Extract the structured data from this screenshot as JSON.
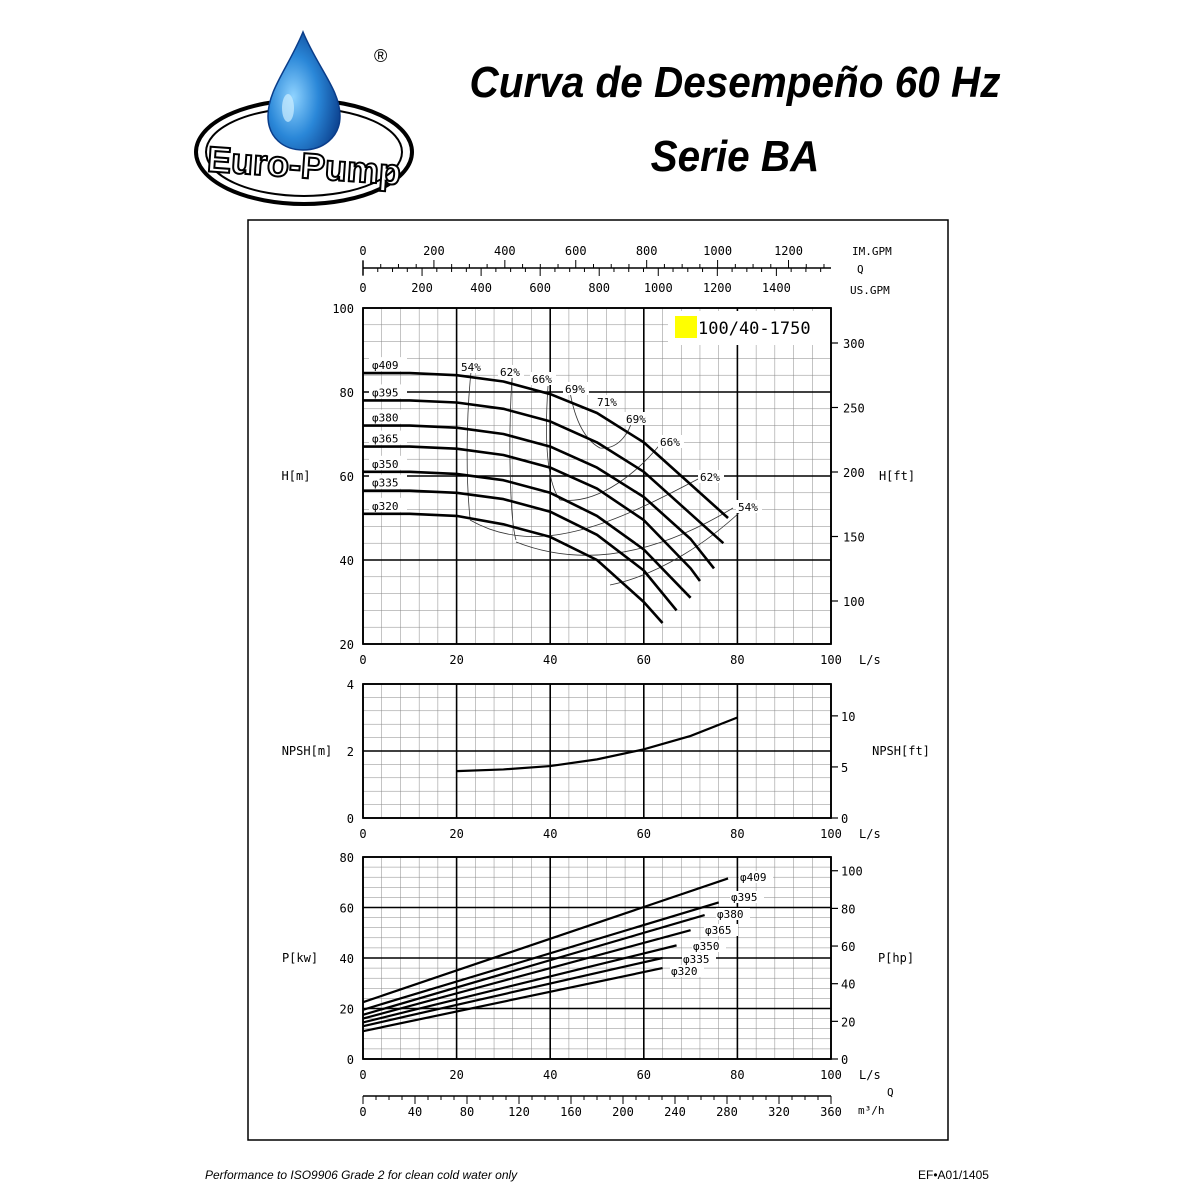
{
  "header": {
    "brand": "Euro-Pump",
    "registered": "®",
    "title_line1": "Curva de Desempeño 60 Hz",
    "title_line2": "Serie BA"
  },
  "footer": {
    "note": "Performance to ISO9906 Grade 2 for clean cold water only",
    "code": "EF•A01/1405"
  },
  "colors": {
    "model_tag": "#ffff00",
    "ink": "#000000",
    "logo_blue": "#1d6fc4"
  },
  "chart_data": [
    {
      "id": "head",
      "type": "line",
      "model": "100/40-1750",
      "xlabel": "L/s",
      "ylabel": "H[m]",
      "ylabel_right": "H[ft]",
      "xlim": [
        0,
        100
      ],
      "ylim": [
        20,
        100
      ],
      "x_ticks": [
        0,
        20,
        40,
        60,
        80,
        100
      ],
      "y_ticks": [
        20,
        40,
        60,
        80,
        100
      ],
      "y_right_ticks": [
        100,
        150,
        200,
        250,
        300
      ],
      "grid": true,
      "top_axes": {
        "label": "Q",
        "im_gpm": {
          "label": "IM.GPM",
          "ticks": [
            0,
            200,
            400,
            600,
            800,
            1000,
            1200
          ]
        },
        "us_gpm": {
          "label": "US.GPM",
          "ticks": [
            0,
            200,
            400,
            600,
            800,
            1000,
            1200,
            1400
          ]
        }
      },
      "series": [
        {
          "name": "φ409",
          "x": [
            0,
            10,
            20,
            30,
            40,
            50,
            60,
            70,
            78
          ],
          "y": [
            84.5,
            84.5,
            84,
            82.5,
            79.5,
            75,
            68,
            58,
            50
          ]
        },
        {
          "name": "φ395",
          "x": [
            0,
            10,
            20,
            30,
            40,
            50,
            60,
            70,
            77
          ],
          "y": [
            78,
            78,
            77.5,
            76,
            73,
            68,
            61,
            51,
            44
          ]
        },
        {
          "name": "φ380",
          "x": [
            0,
            10,
            20,
            30,
            40,
            50,
            60,
            70,
            75
          ],
          "y": [
            72,
            72,
            71.5,
            70,
            67,
            62,
            55,
            45,
            38
          ]
        },
        {
          "name": "φ365",
          "x": [
            0,
            10,
            20,
            30,
            40,
            50,
            60,
            70,
            72
          ],
          "y": [
            67,
            67,
            66.5,
            65,
            62,
            57,
            49.5,
            38,
            35
          ]
        },
        {
          "name": "φ350",
          "x": [
            0,
            10,
            20,
            30,
            40,
            50,
            60,
            70
          ],
          "y": [
            61,
            61,
            60.5,
            59,
            56,
            50.5,
            42.5,
            31
          ]
        },
        {
          "name": "φ335",
          "x": [
            0,
            10,
            20,
            30,
            40,
            50,
            60,
            67
          ],
          "y": [
            56.5,
            56.5,
            56,
            54.5,
            51.5,
            46,
            37.5,
            28
          ]
        },
        {
          "name": "φ320",
          "x": [
            0,
            10,
            20,
            30,
            40,
            50,
            60,
            64
          ],
          "y": [
            51,
            51,
            50.5,
            48.5,
            45.5,
            40,
            30,
            25
          ]
        }
      ],
      "efficiency_labels": [
        "54%",
        "62%",
        "66%",
        "69%",
        "71%",
        "69%",
        "66%",
        "62%",
        "54%"
      ]
    },
    {
      "id": "npsh",
      "type": "line",
      "xlabel": "L/s",
      "ylabel": "NPSH[m]",
      "ylabel_right": "NPSH[ft]",
      "xlim": [
        0,
        100
      ],
      "ylim": [
        0,
        4
      ],
      "x_ticks": [
        0,
        20,
        40,
        60,
        80,
        100
      ],
      "y_ticks": [
        0,
        2,
        4
      ],
      "y_right_ticks": [
        0,
        5,
        10
      ],
      "grid": true,
      "series": [
        {
          "name": "",
          "x": [
            20,
            30,
            40,
            50,
            60,
            70,
            80
          ],
          "y": [
            1.4,
            1.45,
            1.55,
            1.75,
            2.05,
            2.45,
            3.0
          ]
        }
      ]
    },
    {
      "id": "power",
      "type": "line",
      "xlabel": "L/s",
      "ylabel": "P[kw]",
      "ylabel_right": "P[hp]",
      "xlim": [
        0,
        100
      ],
      "ylim": [
        0,
        80
      ],
      "x_ticks": [
        0,
        20,
        40,
        60,
        80,
        100
      ],
      "y_ticks": [
        0,
        20,
        40,
        60,
        80
      ],
      "y_right_ticks": [
        0,
        20,
        40,
        60,
        80,
        100
      ],
      "grid": true,
      "bottom_axis": {
        "label": "m³/h",
        "q_label": "Q",
        "ticks": [
          0,
          40,
          80,
          120,
          160,
          200,
          240,
          280,
          320,
          360
        ]
      },
      "series": [
        {
          "name": "φ409",
          "x": [
            0,
            78
          ],
          "y": [
            22.5,
            71.5
          ]
        },
        {
          "name": "φ395",
          "x": [
            0,
            76
          ],
          "y": [
            19.5,
            62
          ]
        },
        {
          "name": "φ380",
          "x": [
            0,
            73
          ],
          "y": [
            17.5,
            57
          ]
        },
        {
          "name": "φ365",
          "x": [
            0,
            70
          ],
          "y": [
            16,
            51
          ]
        },
        {
          "name": "φ350",
          "x": [
            0,
            67
          ],
          "y": [
            14.5,
            45
          ]
        },
        {
          "name": "φ335",
          "x": [
            0,
            64
          ],
          "y": [
            13,
            40
          ]
        },
        {
          "name": "φ320",
          "x": [
            0,
            64
          ],
          "y": [
            11,
            36
          ]
        }
      ]
    }
  ]
}
